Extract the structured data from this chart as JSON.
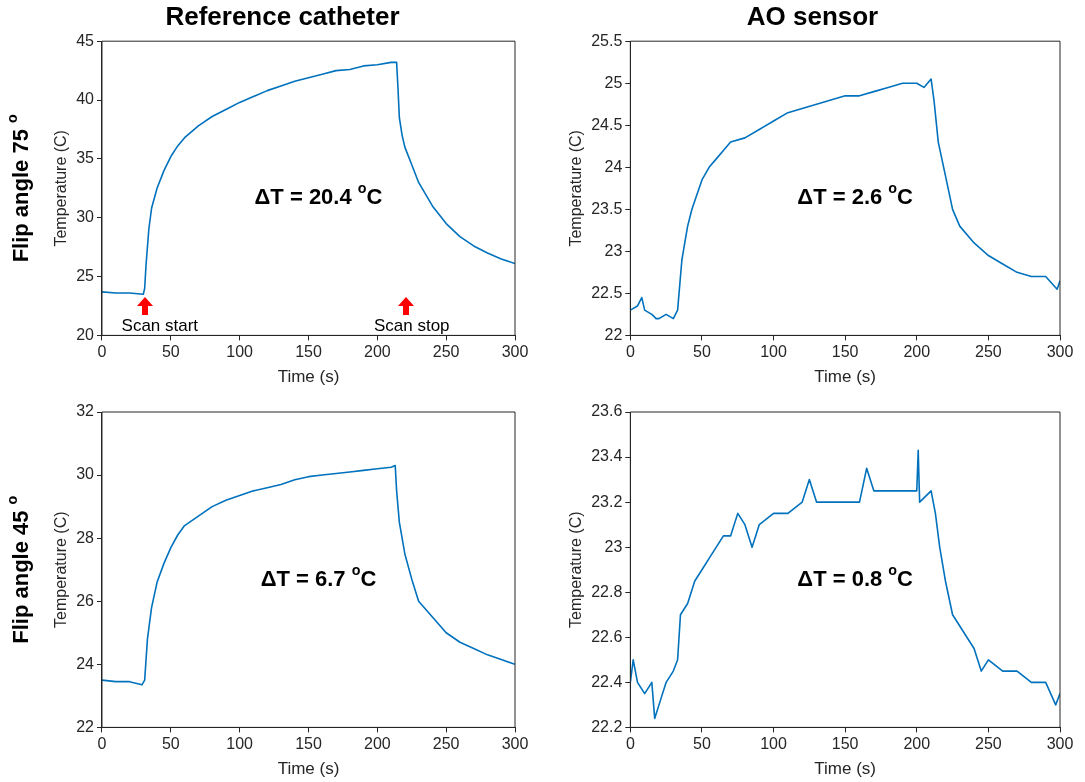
{
  "chart_data": [
    {
      "type": "line",
      "title": "Reference catheter",
      "xlabel": "Time (s)",
      "ylabel": "Temperature (C)",
      "xlim": [
        0,
        300
      ],
      "xticks": [
        0,
        50,
        100,
        150,
        200,
        250,
        300
      ],
      "ylim": [
        20,
        45
      ],
      "yticks": [
        20,
        25,
        30,
        35,
        40,
        45
      ],
      "marker": "none",
      "line_style": "solid",
      "legend": false,
      "annotations": [
        "ΔT = 20.4 $^{o}$C",
        "Flip angle 75 $^{o}$",
        "Scan start",
        "Scan stop"
      ],
      "series": [
        {
          "color": "#0072bd",
          "x": [
            0,
            10,
            20,
            30,
            31,
            32,
            34,
            36,
            40,
            45,
            50,
            55,
            60,
            70,
            80,
            90,
            100,
            110,
            120,
            130,
            140,
            150,
            160,
            170,
            180,
            190,
            200,
            210,
            214,
            215,
            216,
            218,
            220,
            225,
            230,
            240,
            250,
            260,
            270,
            280,
            290,
            300
          ],
          "values": [
            23.7,
            23.6,
            23.6,
            23.5,
            24.0,
            26,
            29,
            30.8,
            32.5,
            34,
            35.2,
            36.1,
            36.8,
            37.8,
            38.6,
            39.2,
            39.8,
            40.3,
            40.8,
            41.2,
            41.6,
            41.9,
            42.2,
            42.5,
            42.6,
            42.9,
            43.0,
            43.2,
            43.2,
            41,
            38.5,
            37,
            36,
            34.5,
            33,
            31,
            29.5,
            28.4,
            27.6,
            27.0,
            26.5,
            26.1
          ]
        }
      ]
    },
    {
      "type": "line",
      "title": "AO sensor",
      "xlabel": "Time (s)",
      "ylabel": "Temperature (C)",
      "xlim": [
        0,
        300
      ],
      "xticks": [
        0,
        50,
        100,
        150,
        200,
        250,
        300
      ],
      "ylim": [
        22,
        25.5
      ],
      "yticks": [
        22,
        22.5,
        23,
        23.5,
        24,
        24.5,
        25,
        25.5
      ],
      "marker": "none",
      "line_style": "solid",
      "legend": false,
      "annotations": [
        "ΔT = 2.6 $^{o}$C"
      ],
      "series": [
        {
          "color": "#0072bd",
          "x": [
            0,
            5,
            8,
            10,
            15,
            18,
            20,
            25,
            30,
            33,
            36,
            40,
            43,
            47,
            50,
            55,
            60,
            65,
            70,
            80,
            90,
            100,
            110,
            120,
            130,
            140,
            150,
            160,
            170,
            180,
            190,
            200,
            205,
            210,
            212,
            215,
            220,
            225,
            230,
            240,
            250,
            260,
            270,
            280,
            290,
            298,
            300
          ],
          "values": [
            22.3,
            22.35,
            22.45,
            22.3,
            22.25,
            22.2,
            22.2,
            22.25,
            22.2,
            22.3,
            22.9,
            23.3,
            23.5,
            23.7,
            23.85,
            24.0,
            24.1,
            24.2,
            24.3,
            24.35,
            24.45,
            24.55,
            24.65,
            24.7,
            24.75,
            24.8,
            24.85,
            24.85,
            24.9,
            24.95,
            25.0,
            25.0,
            24.95,
            25.05,
            24.8,
            24.3,
            23.9,
            23.5,
            23.3,
            23.1,
            22.95,
            22.85,
            22.75,
            22.7,
            22.7,
            22.55,
            22.65
          ]
        }
      ]
    },
    {
      "type": "line",
      "xlabel": "Time (s)",
      "ylabel": "Temperature (C)",
      "xlim": [
        0,
        300
      ],
      "xticks": [
        0,
        50,
        100,
        150,
        200,
        250,
        300
      ],
      "ylim": [
        22,
        32
      ],
      "yticks": [
        22,
        24,
        26,
        28,
        30,
        32
      ],
      "marker": "none",
      "line_style": "solid",
      "legend": false,
      "annotations": [
        "ΔT = 6.7 $^{o}$C",
        "Flip angle 45 $^{o}$"
      ],
      "series": [
        {
          "color": "#0072bd",
          "x": [
            0,
            10,
            20,
            29,
            31,
            33,
            36,
            40,
            45,
            50,
            55,
            60,
            70,
            80,
            90,
            100,
            110,
            120,
            130,
            140,
            150,
            160,
            170,
            180,
            190,
            200,
            210,
            213,
            214,
            216,
            220,
            225,
            230,
            240,
            250,
            260,
            270,
            280,
            290,
            300
          ],
          "values": [
            23.5,
            23.45,
            23.45,
            23.35,
            23.5,
            24.8,
            25.8,
            26.6,
            27.2,
            27.7,
            28.1,
            28.4,
            28.7,
            29.0,
            29.2,
            29.35,
            29.5,
            29.6,
            29.7,
            29.85,
            29.95,
            30.0,
            30.05,
            30.1,
            30.15,
            30.2,
            30.25,
            30.3,
            29.5,
            28.5,
            27.5,
            26.7,
            26.0,
            25.5,
            25.0,
            24.7,
            24.5,
            24.3,
            24.15,
            24.0
          ]
        }
      ]
    },
    {
      "type": "line",
      "xlabel": "Time (s)",
      "ylabel": "Temperature (C)",
      "xlim": [
        0,
        300
      ],
      "xticks": [
        0,
        50,
        100,
        150,
        200,
        250,
        300
      ],
      "ylim": [
        22.2,
        23.6
      ],
      "yticks": [
        22.2,
        22.4,
        22.6,
        22.8,
        23,
        23.2,
        23.4,
        23.6
      ],
      "marker": "none",
      "line_style": "solid",
      "legend": false,
      "annotations": [
        "ΔT = 0.8 $^{o}$C"
      ],
      "series": [
        {
          "color": "#0072bd",
          "x": [
            0,
            2,
            5,
            10,
            15,
            17,
            20,
            25,
            30,
            33,
            35,
            40,
            45,
            50,
            55,
            60,
            65,
            70,
            75,
            80,
            85,
            90,
            100,
            110,
            120,
            125,
            130,
            140,
            150,
            160,
            165,
            170,
            180,
            190,
            200,
            201,
            202,
            210,
            213,
            216,
            220,
            225,
            230,
            240,
            245,
            250,
            260,
            270,
            280,
            290,
            297,
            300
          ],
          "values": [
            22.4,
            22.5,
            22.4,
            22.35,
            22.4,
            22.24,
            22.3,
            22.4,
            22.45,
            22.5,
            22.7,
            22.75,
            22.85,
            22.9,
            22.95,
            23.0,
            23.05,
            23.05,
            23.15,
            23.1,
            23.0,
            23.1,
            23.15,
            23.15,
            23.2,
            23.3,
            23.2,
            23.2,
            23.2,
            23.2,
            23.35,
            23.25,
            23.25,
            23.25,
            23.25,
            23.43,
            23.2,
            23.25,
            23.15,
            23.0,
            22.85,
            22.7,
            22.65,
            22.55,
            22.45,
            22.5,
            22.45,
            22.45,
            22.4,
            22.4,
            22.3,
            22.35
          ]
        }
      ]
    }
  ]
}
